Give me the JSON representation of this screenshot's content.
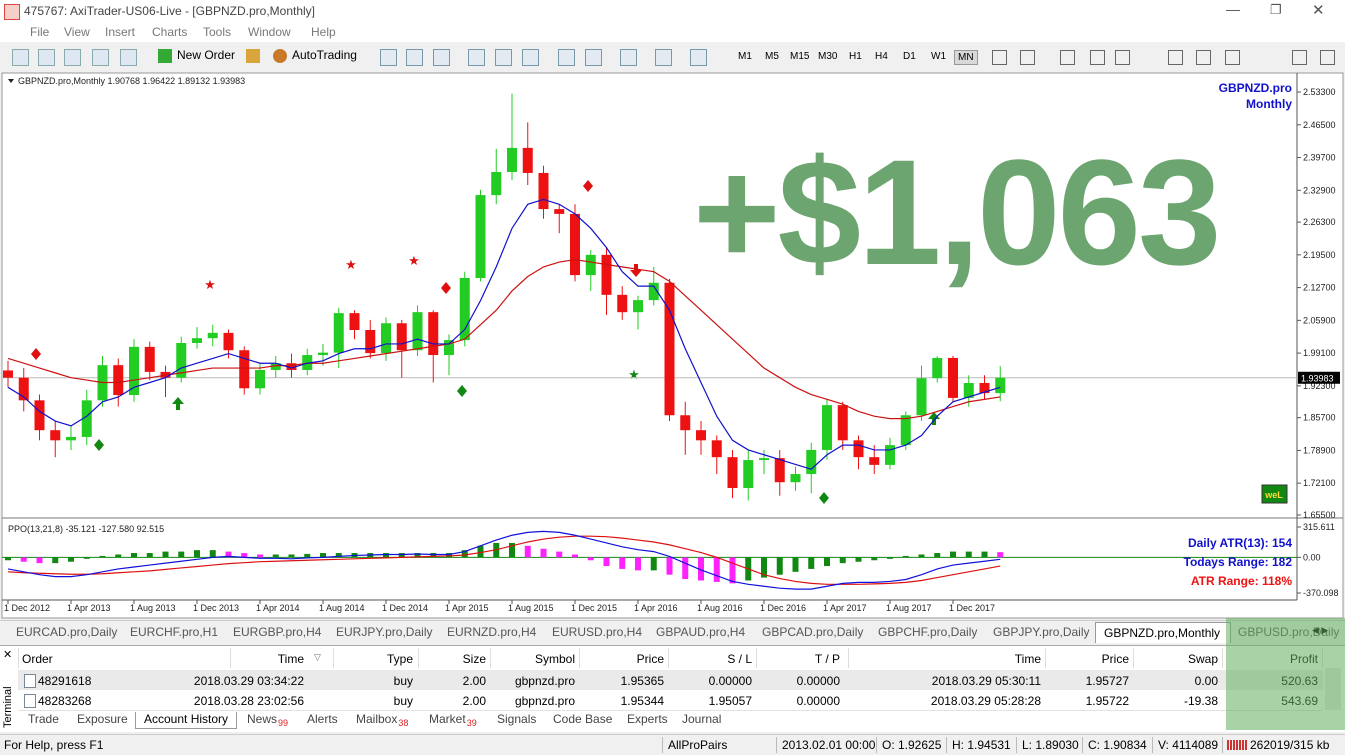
{
  "window": {
    "title": "475767: AxiTrader-US06-Live - [GBPNZD.pro,Monthly]"
  },
  "menu": [
    "File",
    "View",
    "Insert",
    "Charts",
    "Tools",
    "Window",
    "Help"
  ],
  "toolbar": {
    "new_order": "New Order",
    "auto_trading": "AutoTrading",
    "timeframes": [
      "M1",
      "M5",
      "M15",
      "M30",
      "H1",
      "H4",
      "D1",
      "W1",
      "MN"
    ]
  },
  "chart_data": {
    "type": "candlestick",
    "header": "GBPNZD.pro,Monthly  1.90768 1.96422 1.89132 1.93983",
    "symbol_label": "GBPNZD.pro",
    "period_label": "Monthly",
    "overlay_text": "+$1,063",
    "logo_text": "weL",
    "categories": [
      "1 Dec 2012",
      null,
      null,
      null,
      "1 Apr 2013",
      null,
      null,
      null,
      "1 Aug 2013",
      null,
      null,
      null,
      "1 Dec 2013",
      null,
      null,
      null,
      "1 Apr 2014",
      null,
      null,
      null,
      "1 Aug 2014",
      null,
      null,
      null,
      "1 Dec 2014",
      null,
      null,
      null,
      "1 Apr 2015",
      null,
      null,
      null,
      "1 Aug 2015",
      null,
      null,
      null,
      "1 Dec 2015",
      null,
      null,
      null,
      "1 Apr 2016",
      null,
      null,
      null,
      "1 Aug 2016",
      null,
      null,
      null,
      "1 Dec 2016",
      null,
      null,
      null,
      "1 Apr 2017",
      null,
      null,
      null,
      "1 Aug 2017",
      null,
      null,
      null,
      "1 Dec 2017",
      null,
      null,
      null
    ],
    "open": [
      1.955,
      1.94,
      1.893,
      1.831,
      1.81,
      1.817,
      1.893,
      1.966,
      1.904,
      2.004,
      1.952,
      1.94,
      2.012,
      2.022,
      2.033,
      1.997,
      1.918,
      1.956,
      1.97,
      1.956,
      1.987,
      1.992,
      2.074,
      2.039,
      1.991,
      2.053,
      1.997,
      2.076,
      1.987,
      2.018,
      2.147,
      2.319,
      2.367,
      2.417,
      2.365,
      2.29,
      2.28,
      2.153,
      2.195,
      2.112,
      2.076,
      2.101,
      2.137,
      1.862,
      1.831,
      1.81,
      1.775,
      1.711,
      1.769,
      1.773,
      1.723,
      1.74,
      1.79,
      1.883,
      1.81,
      1.775,
      1.759,
      1.8,
      1.862,
      1.939,
      1.981,
      1.898,
      1.929,
      1.908
    ],
    "high": [
      1.975,
      1.96,
      1.905,
      1.85,
      1.84,
      1.915,
      1.985,
      1.98,
      2.02,
      2.015,
      1.965,
      2.025,
      2.045,
      2.05,
      2.04,
      2.005,
      1.97,
      1.985,
      1.99,
      2.0,
      2.01,
      2.085,
      2.08,
      2.06,
      2.065,
      2.06,
      2.09,
      2.08,
      2.03,
      2.16,
      2.33,
      2.415,
      2.53,
      2.47,
      2.38,
      2.3,
      2.3,
      2.205,
      2.21,
      2.13,
      2.11,
      2.17,
      2.145,
      1.89,
      1.85,
      1.82,
      1.79,
      1.79,
      1.79,
      1.79,
      1.755,
      1.805,
      1.895,
      1.89,
      1.82,
      1.8,
      1.815,
      1.87,
      1.965,
      1.985,
      1.985,
      1.945,
      1.945,
      1.964
    ],
    "low": [
      1.92,
      1.87,
      1.81,
      1.775,
      1.79,
      1.8,
      1.88,
      1.88,
      1.89,
      1.935,
      1.9,
      1.93,
      2.0,
      2.005,
      1.98,
      1.905,
      1.905,
      1.94,
      1.94,
      1.945,
      1.965,
      1.96,
      2.02,
      1.98,
      1.975,
      1.94,
      1.985,
      1.93,
      1.945,
      2.005,
      2.14,
      2.3,
      2.35,
      2.34,
      2.27,
      2.24,
      2.14,
      2.12,
      2.07,
      2.06,
      2.04,
      2.09,
      1.85,
      1.78,
      1.78,
      1.74,
      1.69,
      1.685,
      1.74,
      1.695,
      1.705,
      1.7,
      1.77,
      1.79,
      1.75,
      1.74,
      1.75,
      1.79,
      1.85,
      1.93,
      1.89,
      1.88,
      1.895,
      1.891
    ],
    "close": [
      1.94,
      1.893,
      1.831,
      1.81,
      1.817,
      1.893,
      1.966,
      1.904,
      2.004,
      1.952,
      1.94,
      2.012,
      2.022,
      2.033,
      1.997,
      1.918,
      1.956,
      1.97,
      1.956,
      1.987,
      1.992,
      2.074,
      2.039,
      1.991,
      2.053,
      1.997,
      2.076,
      1.987,
      2.018,
      2.147,
      2.319,
      2.367,
      2.417,
      2.365,
      2.29,
      2.28,
      2.153,
      2.195,
      2.112,
      2.076,
      2.101,
      2.137,
      1.862,
      1.831,
      1.81,
      1.775,
      1.711,
      1.769,
      1.773,
      1.723,
      1.74,
      1.79,
      1.883,
      1.81,
      1.775,
      1.759,
      1.8,
      1.862,
      1.939,
      1.981,
      1.898,
      1.929,
      1.908,
      1.94
    ],
    "up_color": "#22cc22",
    "down_color": "#ee1111",
    "ma_fast": {
      "color": "#1111cc",
      "values": [
        1.92,
        1.9,
        1.87,
        1.85,
        1.84,
        1.86,
        1.89,
        1.9,
        1.92,
        1.93,
        1.94,
        1.96,
        1.97,
        1.98,
        1.99,
        1.98,
        1.97,
        1.97,
        1.96,
        1.97,
        1.975,
        1.99,
        2.0,
        2.0,
        2.01,
        2.01,
        2.02,
        2.01,
        2.01,
        2.04,
        2.1,
        2.17,
        2.25,
        2.3,
        2.31,
        2.3,
        2.28,
        2.25,
        2.21,
        2.16,
        2.13,
        2.13,
        2.08,
        2.0,
        1.93,
        1.86,
        1.81,
        1.79,
        1.78,
        1.77,
        1.76,
        1.75,
        1.78,
        1.8,
        1.8,
        1.79,
        1.79,
        1.8,
        1.82,
        1.86,
        1.89,
        1.9,
        1.91,
        1.92
      ]
    },
    "ma_slow": {
      "color": "#cc1111",
      "values": [
        1.98,
        1.97,
        1.96,
        1.95,
        1.94,
        1.935,
        1.93,
        1.93,
        1.935,
        1.94,
        1.945,
        1.95,
        1.955,
        1.96,
        1.96,
        1.96,
        1.96,
        1.965,
        1.965,
        1.97,
        1.97,
        1.975,
        1.98,
        1.985,
        1.99,
        1.995,
        2.0,
        2.005,
        2.01,
        2.02,
        2.05,
        2.08,
        2.12,
        2.15,
        2.17,
        2.18,
        2.185,
        2.18,
        2.175,
        2.17,
        2.165,
        2.16,
        2.14,
        2.11,
        2.08,
        2.05,
        2.02,
        1.99,
        1.96,
        1.94,
        1.92,
        1.905,
        1.895,
        1.885,
        1.87,
        1.86,
        1.855,
        1.855,
        1.86,
        1.87,
        1.88,
        1.89,
        1.895,
        1.9
      ]
    },
    "ylim": [
      1.6508,
      2.5704
    ],
    "yticks": [
      {
        "value": 2.533,
        "label": "2.53300"
      },
      {
        "value": 2.465,
        "label": "2.46500"
      },
      {
        "value": 2.397,
        "label": "2.39700"
      },
      {
        "value": 2.329,
        "label": "2.32900"
      },
      {
        "value": 2.263,
        "label": "2.26300"
      },
      {
        "value": 2.195,
        "label": "2.19500"
      },
      {
        "value": 2.127,
        "label": "2.12700"
      },
      {
        "value": 2.059,
        "label": "2.05900"
      },
      {
        "value": 1.991,
        "label": "1.99100"
      },
      {
        "value": 1.923,
        "label": "1.92300"
      },
      {
        "value": 1.857,
        "label": "1.85700"
      },
      {
        "value": 1.789,
        "label": "1.78900"
      },
      {
        "value": 1.721,
        "label": "1.72100"
      },
      {
        "value": 1.655,
        "label": "1.65500"
      }
    ],
    "current_price": 1.93983,
    "indicator": {
      "label": "PPO(13,21,8) -35.121 -127.580 92.515",
      "ylim": [
        -411.7,
        377.9
      ],
      "yticks": [
        315.611,
        {
          "value": 0,
          "label": "0.00"
        },
        -370.098
      ],
      "hist": [
        -30,
        -45,
        -60,
        -60,
        -45,
        -15,
        15,
        30,
        45,
        45,
        60,
        60,
        75,
        75,
        60,
        45,
        30,
        30,
        30,
        36,
        45,
        45,
        45,
        45,
        45,
        45,
        45,
        45,
        45,
        75,
        120,
        150,
        150,
        120,
        90,
        60,
        30,
        -30,
        -90,
        -120,
        -135,
        -135,
        -180,
        -225,
        -240,
        -255,
        -270,
        -240,
        -210,
        -180,
        -150,
        -120,
        -90,
        -60,
        -45,
        -30,
        -15,
        15,
        30,
        45,
        60,
        60,
        60,
        54
      ],
      "hist_up_color": "#118811",
      "hist_down_color": "#ff22ff",
      "ppo": {
        "color": "#1111dd",
        "values": [
          -120,
          -150,
          -180,
          -200,
          -200,
          -180,
          -150,
          -120,
          -100,
          -80,
          -60,
          -40,
          -20,
          0,
          10,
          0,
          -10,
          -10,
          -15,
          -5,
          0,
          10,
          20,
          25,
          30,
          30,
          35,
          30,
          30,
          60,
          120,
          180,
          230,
          260,
          270,
          260,
          230,
          190,
          150,
          110,
          80,
          60,
          10,
          -60,
          -130,
          -190,
          -250,
          -280,
          -300,
          -320,
          -330,
          -330,
          -300,
          -270,
          -260,
          -260,
          -250,
          -230,
          -180,
          -120,
          -80,
          -60,
          -40,
          -20
        ]
      },
      "signal": {
        "color": "#dd1111",
        "values": [
          -150,
          -160,
          -165,
          -170,
          -175,
          -175,
          -170,
          -160,
          -150,
          -140,
          -125,
          -110,
          -95,
          -80,
          -65,
          -55,
          -45,
          -40,
          -35,
          -30,
          -25,
          -20,
          -15,
          -10,
          -5,
          0,
          5,
          10,
          15,
          25,
          50,
          80,
          120,
          160,
          190,
          210,
          220,
          220,
          215,
          200,
          180,
          160,
          130,
          90,
          50,
          0,
          -60,
          -120,
          -180,
          -220,
          -250,
          -270,
          -280,
          -280,
          -280,
          -275,
          -270,
          -260,
          -240,
          -210,
          -180,
          -150,
          -120,
          -90
        ]
      },
      "stats": [
        {
          "text": "Daily ATR(13): 154",
          "color": "#1111cc"
        },
        {
          "text": "Todays Range: 182",
          "color": "#1111cc"
        },
        {
          "text": "ATR Range: 118%",
          "color": "#ee1111"
        }
      ]
    }
  },
  "symbol_tabs": [
    "EURCAD.pro,Daily",
    "EURCHF.pro,H1",
    "EURGBP.pro,H4",
    "EURJPY.pro,Daily",
    "EURNZD.pro,H4",
    "EURUSD.pro,H4",
    "GBPAUD.pro,H4",
    "GBPCAD.pro,Daily",
    "GBPCHF.pro,Daily",
    "GBPJPY.pro,Daily",
    "GBPNZD.pro,Monthly",
    "GBPUSD.pro,Daily"
  ],
  "terminal": {
    "side_label": "Terminal",
    "columns": [
      "Order",
      "Time",
      "Type",
      "Size",
      "Symbol",
      "Price",
      "S / L",
      "T / P",
      "Time",
      "Price",
      "Swap",
      "Profit"
    ],
    "rows": [
      [
        "48291618",
        "2018.03.29 03:34:22",
        "buy",
        "2.00",
        "gbpnzd.pro",
        "1.95365",
        "0.00000",
        "0.00000",
        "2018.03.29 05:30:11",
        "1.95727",
        "0.00",
        "520.63"
      ],
      [
        "48283268",
        "2018.03.28 23:02:56",
        "buy",
        "2.00",
        "gbpnzd.pro",
        "1.95344",
        "1.95057",
        "0.00000",
        "2018.03.29 05:28:28",
        "1.95722",
        "-19.38",
        "543.69"
      ]
    ],
    "tabs": [
      {
        "label": "Trade"
      },
      {
        "label": "Exposure"
      },
      {
        "label": "Account History"
      },
      {
        "label": "News",
        "badge": "99"
      },
      {
        "label": "Alerts"
      },
      {
        "label": "Mailbox",
        "badge": "38"
      },
      {
        "label": "Market",
        "badge": "39"
      },
      {
        "label": "Signals"
      },
      {
        "label": "Code Base"
      },
      {
        "label": "Experts"
      },
      {
        "label": "Journal"
      }
    ]
  },
  "status_bar": [
    "For Help, press F1",
    "AllProPairs",
    "2013.02.01 00:00",
    "O: 1.92625",
    "H: 1.94531",
    "L: 1.89030",
    "C: 1.90834",
    "V: 4114089",
    "262019/315 kb"
  ]
}
